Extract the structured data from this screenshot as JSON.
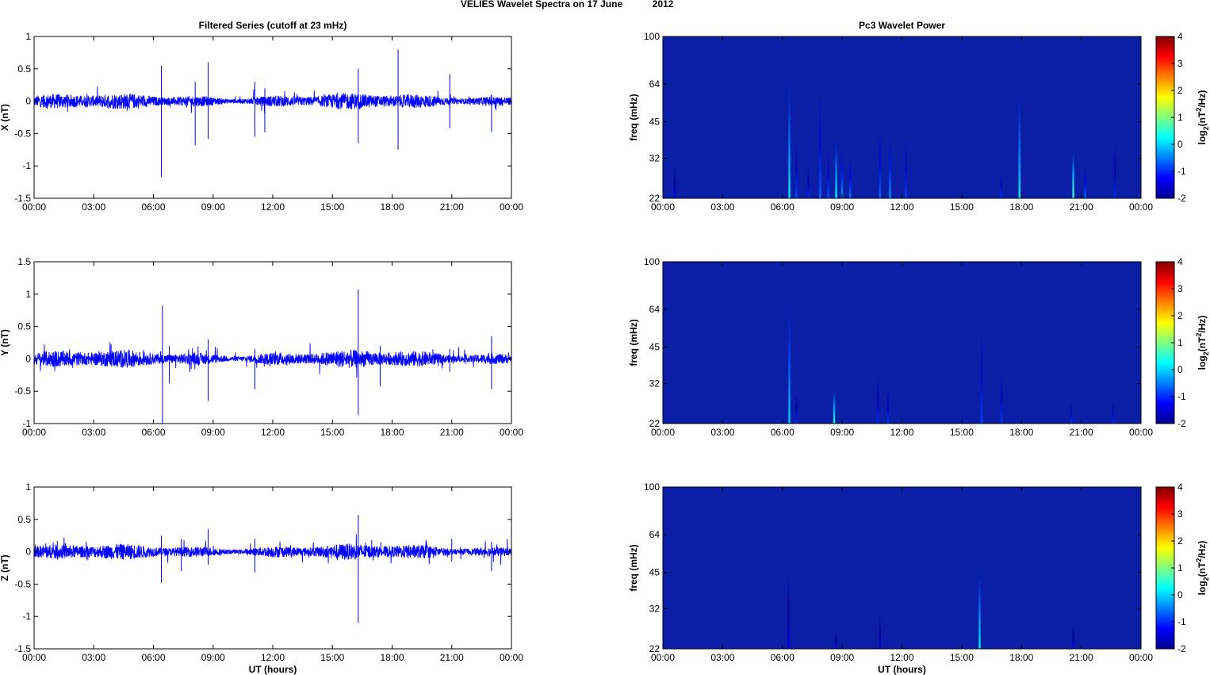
{
  "figure": {
    "title_main": "VELIES Wavelet Spectra on 17 June",
    "title_year": "2012"
  },
  "colors": {
    "series_line": "#0000ff",
    "axes": "#000000",
    "spectrogram_background": "#0a1fa6"
  },
  "chart_data": [
    {
      "type": "line",
      "title": "Filtered Series (cutoff at 23 mHz)",
      "ylabel": "X (nT)",
      "xlabel": "",
      "x_ticks": [
        "00:00",
        "03:00",
        "06:00",
        "09:00",
        "12:00",
        "15:00",
        "18:00",
        "21:00",
        "00:00"
      ],
      "xlim_hours": [
        0,
        24
      ],
      "ylim": [
        -1.5,
        1
      ],
      "y_ticks": [
        -1.5,
        -1,
        -0.5,
        0,
        0.5,
        1
      ],
      "noise_amplitude": 0.08,
      "spikes": [
        {
          "t": 6.4,
          "ymax": 0.55,
          "ymin": -1.17
        },
        {
          "t": 8.1,
          "ymax": 0.3,
          "ymin": -0.68
        },
        {
          "t": 8.75,
          "ymax": 0.6,
          "ymin": -0.58
        },
        {
          "t": 11.1,
          "ymax": 0.3,
          "ymin": -0.55
        },
        {
          "t": 11.6,
          "ymax": 0.2,
          "ymin": -0.48
        },
        {
          "t": 16.3,
          "ymax": 0.5,
          "ymin": -0.65
        },
        {
          "t": 18.3,
          "ymax": 0.8,
          "ymin": -0.75
        },
        {
          "t": 20.9,
          "ymax": 0.42,
          "ymin": -0.42
        },
        {
          "t": 23.0,
          "ymax": 0.1,
          "ymin": -0.48
        }
      ]
    },
    {
      "type": "line",
      "title": "",
      "ylabel": "Y (nT)",
      "xlabel": "",
      "x_ticks": [
        "00:00",
        "03:00",
        "06:00",
        "09:00",
        "12:00",
        "15:00",
        "18:00",
        "21:00",
        "00:00"
      ],
      "xlim_hours": [
        0,
        24
      ],
      "ylim": [
        -1,
        1.5
      ],
      "y_ticks": [
        -1,
        -0.5,
        0,
        0.5,
        1,
        1.5
      ],
      "noise_amplitude": 0.09,
      "spikes": [
        {
          "t": 6.45,
          "ymax": 0.82,
          "ymin": -1.0
        },
        {
          "t": 6.8,
          "ymax": 0.2,
          "ymin": -0.38
        },
        {
          "t": 8.75,
          "ymax": 0.3,
          "ymin": -0.65
        },
        {
          "t": 11.1,
          "ymax": 0.15,
          "ymin": -0.47
        },
        {
          "t": 16.3,
          "ymax": 1.07,
          "ymin": -0.87
        },
        {
          "t": 17.4,
          "ymax": 0.2,
          "ymin": -0.42
        },
        {
          "t": 20.9,
          "ymax": 0.15,
          "ymin": -0.2
        },
        {
          "t": 23.0,
          "ymax": 0.35,
          "ymin": -0.47
        }
      ]
    },
    {
      "type": "line",
      "title": "",
      "ylabel": "Z (nT)",
      "xlabel": "UT (hours)",
      "x_ticks": [
        "00:00",
        "03:00",
        "06:00",
        "09:00",
        "12:00",
        "15:00",
        "18:00",
        "21:00",
        "00:00"
      ],
      "xlim_hours": [
        0,
        24
      ],
      "ylim": [
        -1.5,
        1
      ],
      "y_ticks": [
        -1.5,
        -1,
        -0.5,
        0,
        0.5,
        1
      ],
      "noise_amplitude": 0.08,
      "spikes": [
        {
          "t": 6.4,
          "ymax": 0.25,
          "ymin": -0.48
        },
        {
          "t": 7.4,
          "ymax": 0.2,
          "ymin": -0.3
        },
        {
          "t": 8.75,
          "ymax": 0.35,
          "ymin": -0.2
        },
        {
          "t": 11.1,
          "ymax": 0.2,
          "ymin": -0.32
        },
        {
          "t": 16.3,
          "ymax": 0.57,
          "ymin": -1.1
        },
        {
          "t": 21.0,
          "ymax": 0.2,
          "ymin": -0.15
        },
        {
          "t": 23.0,
          "ymax": 0.15,
          "ymin": -0.3
        }
      ]
    },
    {
      "type": "heatmap",
      "title": "Pc3 Wavelet Power",
      "ylabel": "freq (mHz)",
      "xlabel": "",
      "x_ticks": [
        "00:00",
        "03:00",
        "06:00",
        "09:00",
        "12:00",
        "15:00",
        "18:00",
        "21:00",
        "00:00"
      ],
      "xlim_hours": [
        0,
        24
      ],
      "y_scale": "log",
      "ylim": [
        22,
        100
      ],
      "y_ticks": [
        22,
        32,
        45,
        64,
        100
      ],
      "colorbar_label": "log2(nT2/Hz)",
      "colorbar_ticks": [
        -2,
        -1,
        0,
        1,
        2,
        3,
        4
      ],
      "clim": [
        -2,
        4
      ],
      "streaks": [
        {
          "t": 0.6,
          "ftop": 30,
          "power": -1.3
        },
        {
          "t": 6.35,
          "ftop": 75,
          "power": 0.2
        },
        {
          "t": 6.7,
          "ftop": 38,
          "power": -0.8
        },
        {
          "t": 7.3,
          "ftop": 30,
          "power": -1.0
        },
        {
          "t": 7.9,
          "ftop": 60,
          "power": -0.6
        },
        {
          "t": 8.3,
          "ftop": 34,
          "power": -0.7
        },
        {
          "t": 8.7,
          "ftop": 40,
          "power": 0.3
        },
        {
          "t": 9.0,
          "ftop": 35,
          "power": -0.3
        },
        {
          "t": 9.4,
          "ftop": 32,
          "power": -0.5
        },
        {
          "t": 10.9,
          "ftop": 42,
          "power": -0.6
        },
        {
          "t": 11.4,
          "ftop": 40,
          "power": -0.3
        },
        {
          "t": 12.2,
          "ftop": 38,
          "power": -0.8
        },
        {
          "t": 17.0,
          "ftop": 28,
          "power": -0.9
        },
        {
          "t": 17.9,
          "ftop": 65,
          "power": 0.2
        },
        {
          "t": 20.6,
          "ftop": 36,
          "power": 0.6
        },
        {
          "t": 21.2,
          "ftop": 30,
          "power": -0.6
        },
        {
          "t": 22.7,
          "ftop": 37,
          "power": -1.0
        }
      ]
    },
    {
      "type": "heatmap",
      "title": "",
      "ylabel": "freq (mHz)",
      "xlabel": "",
      "x_ticks": [
        "00:00",
        "03:00",
        "06:00",
        "09:00",
        "12:00",
        "15:00",
        "18:00",
        "21:00",
        "00:00"
      ],
      "xlim_hours": [
        0,
        24
      ],
      "y_scale": "log",
      "ylim": [
        22,
        100
      ],
      "y_ticks": [
        22,
        32,
        45,
        64,
        100
      ],
      "colorbar_label": "log2(nT2/Hz)",
      "colorbar_ticks": [
        -2,
        -1,
        0,
        1,
        2,
        3,
        4
      ],
      "clim": [
        -2,
        4
      ],
      "streaks": [
        {
          "t": 6.35,
          "ftop": 78,
          "power": 0.0
        },
        {
          "t": 6.7,
          "ftop": 30,
          "power": -1.0
        },
        {
          "t": 8.6,
          "ftop": 32,
          "power": 0.4
        },
        {
          "t": 10.8,
          "ftop": 35,
          "power": -1.0
        },
        {
          "t": 11.3,
          "ftop": 30,
          "power": -0.9
        },
        {
          "t": 16.0,
          "ftop": 52,
          "power": -0.8
        },
        {
          "t": 17.0,
          "ftop": 36,
          "power": -0.9
        },
        {
          "t": 20.5,
          "ftop": 27,
          "power": -0.9
        },
        {
          "t": 22.6,
          "ftop": 28,
          "power": -1.0
        }
      ]
    },
    {
      "type": "heatmap",
      "title": "",
      "ylabel": "freq (mHz)",
      "xlabel": "UT (hours)",
      "x_ticks": [
        "00:00",
        "03:00",
        "06:00",
        "09:00",
        "12:00",
        "15:00",
        "18:00",
        "21:00",
        "00:00"
      ],
      "xlim_hours": [
        0,
        24
      ],
      "y_scale": "log",
      "ylim": [
        22,
        100
      ],
      "y_ticks": [
        22,
        32,
        45,
        64,
        100
      ],
      "colorbar_label": "log2(nT2/Hz)",
      "colorbar_ticks": [
        -2,
        -1,
        0,
        1,
        2,
        3,
        4
      ],
      "clim": [
        -2,
        4
      ],
      "streaks": [
        {
          "t": 6.3,
          "ftop": 45,
          "power": -1.3
        },
        {
          "t": 8.7,
          "ftop": 26,
          "power": -1.2
        },
        {
          "t": 10.9,
          "ftop": 30,
          "power": -1.4
        },
        {
          "t": 15.9,
          "ftop": 50,
          "power": 0.2
        },
        {
          "t": 20.6,
          "ftop": 28,
          "power": -1.2
        }
      ]
    }
  ]
}
